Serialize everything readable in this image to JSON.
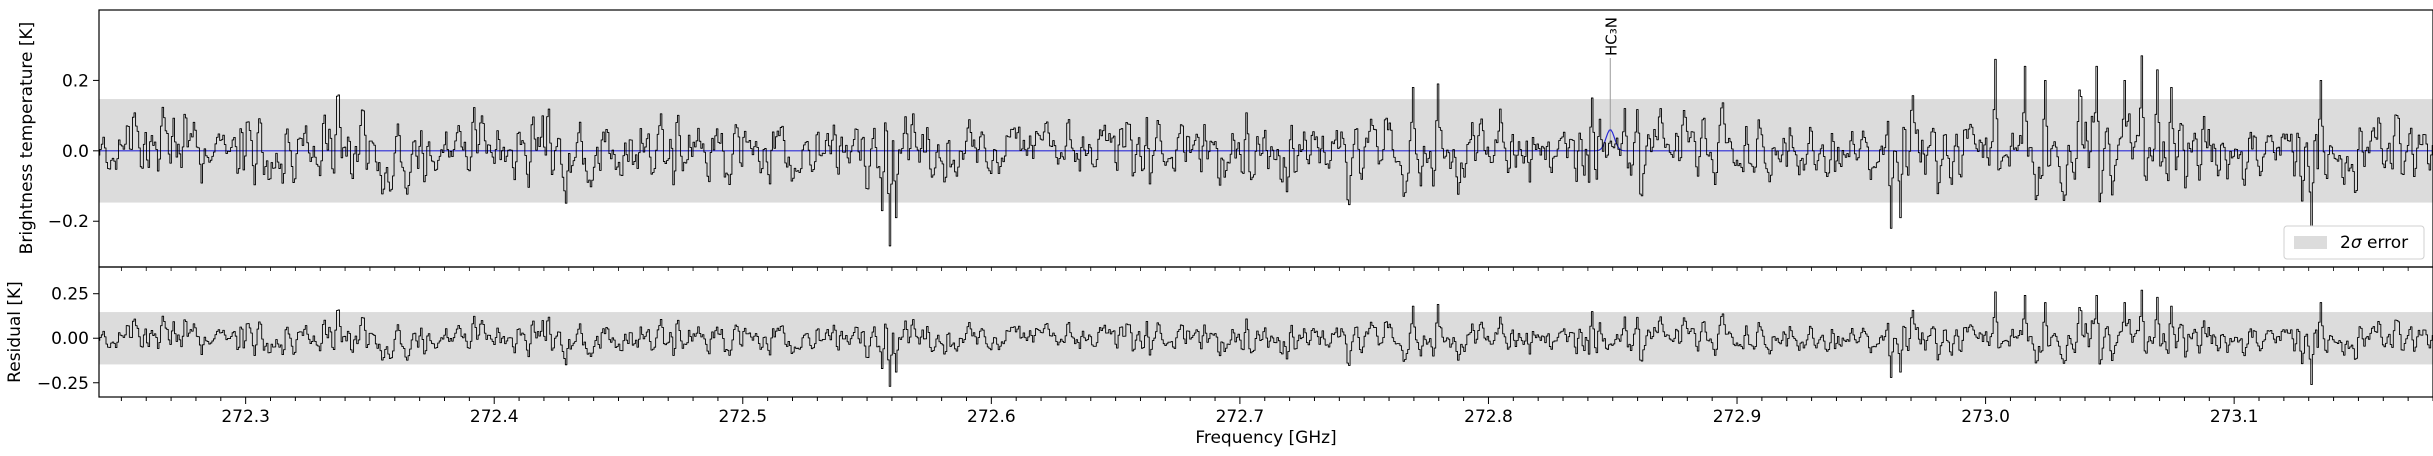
{
  "chart_data": [
    {
      "panel": "top",
      "type": "line",
      "ylabel": "Brightness temperature [K]",
      "ylim": [
        -0.33,
        0.4
      ],
      "xlim": [
        272.241,
        273.18
      ],
      "yticks": [
        -0.2,
        0.0,
        0.2
      ],
      "ytick_labels": [
        "−0.2",
        "0.0",
        "0.2"
      ],
      "error_band": [
        -0.147,
        0.147
      ],
      "legend": {
        "label_prefix": "2",
        "label_sigma": "σ",
        "label_suffix": " error",
        "placement": "lower-right"
      },
      "annotations": [
        {
          "label": "HC₃N",
          "x": 272.849
        }
      ],
      "model": {
        "color": "#2b2bd6",
        "baseline": 0.0,
        "peak_x": 272.849,
        "peak_amplitude": 0.06,
        "fwhm_ghz": 0.004
      },
      "series": [
        {
          "color": "#000000",
          "points": 1500
        }
      ],
      "features": [
        {
          "x": 272.559,
          "y": -0.27
        },
        {
          "x": 272.556,
          "y": -0.17
        },
        {
          "x": 272.562,
          "y": -0.19
        },
        {
          "x": 272.962,
          "y": -0.22
        },
        {
          "x": 272.966,
          "y": -0.19
        },
        {
          "x": 273.004,
          "y": 0.26
        },
        {
          "x": 273.016,
          "y": 0.24
        },
        {
          "x": 273.024,
          "y": 0.2
        },
        {
          "x": 273.045,
          "y": 0.24
        },
        {
          "x": 273.056,
          "y": 0.2
        },
        {
          "x": 273.063,
          "y": 0.27
        },
        {
          "x": 273.069,
          "y": 0.23
        },
        {
          "x": 273.075,
          "y": 0.18
        },
        {
          "x": 273.131,
          "y": -0.26
        },
        {
          "x": 273.135,
          "y": 0.2
        },
        {
          "x": 272.77,
          "y": 0.18
        },
        {
          "x": 272.78,
          "y": 0.19
        },
        {
          "x": 272.842,
          "y": 0.15
        },
        {
          "x": 272.855,
          "y": 0.12
        },
        {
          "x": 272.845,
          "y": 0.09
        }
      ]
    },
    {
      "panel": "bottom",
      "type": "line",
      "ylabel": "Residual [K]",
      "xlabel": "Frequency [GHz]",
      "ylim": [
        -0.33,
        0.4
      ],
      "xlim": [
        272.241,
        273.18
      ],
      "yticks": [
        -0.25,
        0.0,
        0.25
      ],
      "ytick_labels": [
        "−0.25",
        "0.00",
        "0.25"
      ],
      "xticks": [
        272.3,
        272.4,
        272.5,
        272.6,
        272.7,
        272.8,
        272.9,
        273.0,
        273.1
      ],
      "xtick_labels": [
        "272.3",
        "272.4",
        "272.5",
        "272.6",
        "272.7",
        "272.8",
        "272.9",
        "273.0",
        "273.1"
      ],
      "error_band": [
        -0.147,
        0.147
      ],
      "series": [
        {
          "color": "#000000",
          "points": 1500
        }
      ]
    }
  ]
}
